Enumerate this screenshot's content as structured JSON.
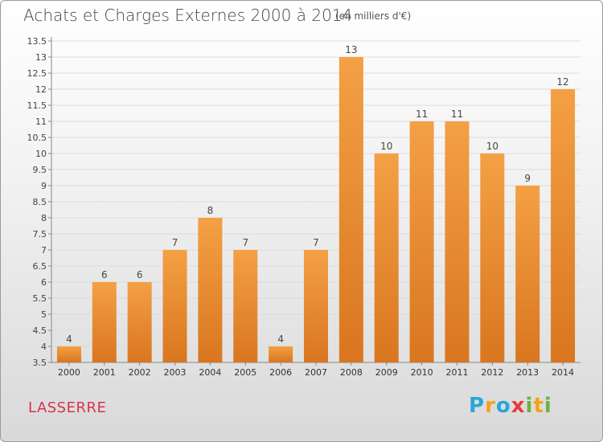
{
  "header": {
    "title": "Achats et Charges Externes 2000 à 2014",
    "subtitle": "(en milliers d'€)"
  },
  "footer": {
    "commune": "LASSERRE",
    "logo_letters": [
      "P",
      "r",
      "o",
      "x",
      "i",
      "t",
      "i"
    ],
    "logo_colors": [
      "#2aa6d8",
      "#f2a31b",
      "#2aa6d8",
      "#e8383d",
      "#6cb33f",
      "#f2a31b",
      "#6cb33f"
    ]
  },
  "chart_data": {
    "type": "bar",
    "categories": [
      "2000",
      "2001",
      "2002",
      "2003",
      "2004",
      "2005",
      "2006",
      "2007",
      "2008",
      "2009",
      "2010",
      "2011",
      "2012",
      "2013",
      "2014"
    ],
    "values": [
      4,
      6,
      6,
      7,
      8,
      7,
      4,
      7,
      13,
      10,
      11,
      11,
      10,
      9,
      12
    ],
    "data_labels": [
      "4",
      "6",
      "6",
      "7",
      "8",
      "7",
      "4",
      "7",
      "13",
      "10",
      "11",
      "11",
      "10",
      "9",
      "12"
    ],
    "yticks": [
      "3.5",
      "4",
      "4.5",
      "5",
      "5.5",
      "6",
      "6.5",
      "7",
      "7.5",
      "8",
      "8.5",
      "9",
      "9.5",
      "10",
      "10.5",
      "11",
      "11.5",
      "12",
      "12.5",
      "13",
      "13.5"
    ],
    "ylim": [
      3.5,
      13.5
    ],
    "bar_color": "#f4a045",
    "bar_color_dark": "#d9761f",
    "grid": true
  }
}
